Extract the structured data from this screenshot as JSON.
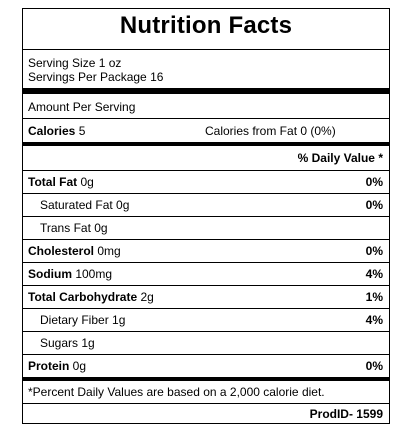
{
  "label": {
    "title": "Nutrition Facts",
    "serving_size": "Serving Size 1 oz",
    "servings_per_package": "Servings Per Package 16",
    "amount_per_serving": "Amount Per Serving",
    "calories_label": "Calories",
    "calories_value": " 5",
    "calories_from_fat": "Calories from Fat 0 (0%)",
    "daily_value_header": "% Daily Value *",
    "rows": [
      {
        "name": "Total Fat",
        "amount": " 0g",
        "dv": "0%"
      },
      {
        "name": "Saturated Fat 0g",
        "amount": "",
        "dv": "0%"
      },
      {
        "name": "Trans Fat 0g",
        "amount": "",
        "dv": ""
      },
      {
        "name": "Cholesterol",
        "amount": " 0mg",
        "dv": "0%"
      },
      {
        "name": "Sodium",
        "amount": " 100mg",
        "dv": "4%"
      },
      {
        "name": "Total Carbohydrate",
        "amount": " 2g",
        "dv": "1%"
      },
      {
        "name": "Dietary Fiber 1g",
        "amount": "",
        "dv": "4%"
      },
      {
        "name": "Sugars 1g",
        "amount": "",
        "dv": ""
      },
      {
        "name": "Protein",
        "amount": " 0g",
        "dv": "0%"
      }
    ],
    "footnote": "*Percent Daily Values are based on a 2,000 calorie diet.",
    "prod_id": "ProdID- 1599"
  }
}
